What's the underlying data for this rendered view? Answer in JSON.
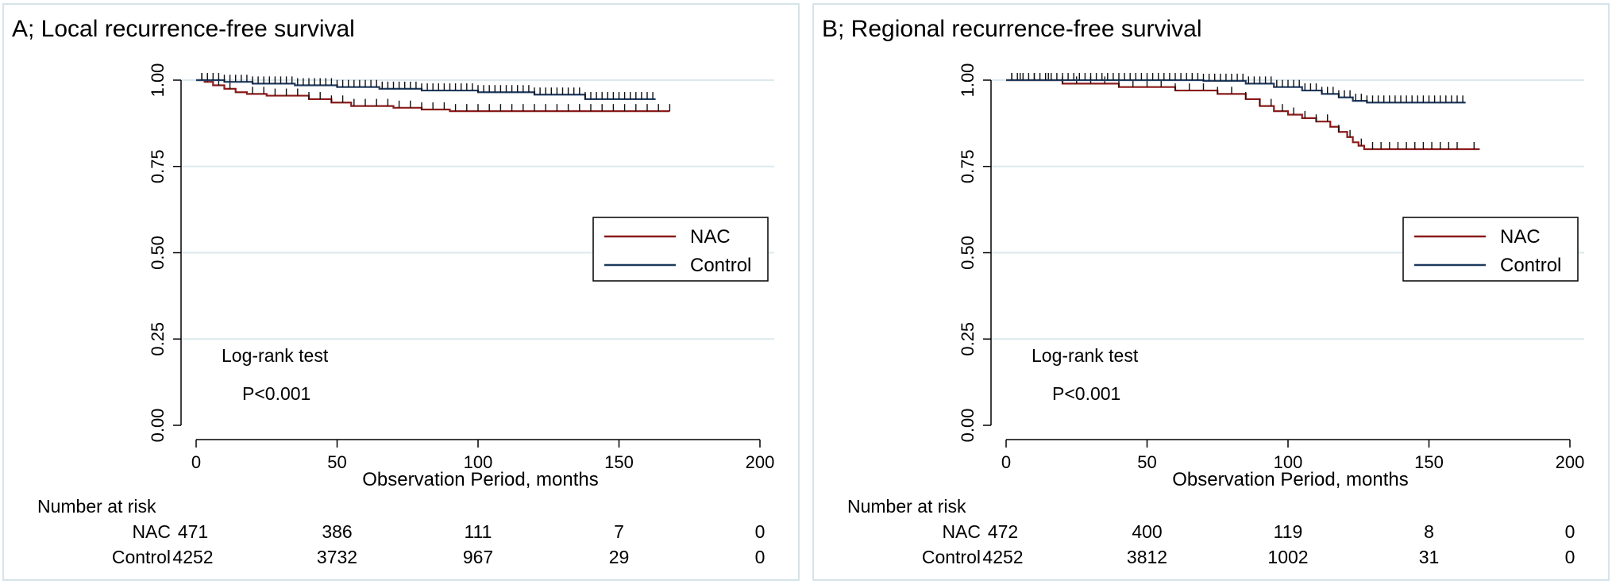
{
  "chart_data": [
    {
      "type": "line",
      "panel": "A",
      "title": "A;  Local recurrence-free survival",
      "xlabel": "Observation Period, months",
      "ylabel": "",
      "xlim": [
        0,
        200
      ],
      "ylim": [
        0,
        1
      ],
      "xticks": [
        0,
        50,
        100,
        150,
        200
      ],
      "xtick_labels": [
        "0",
        "50",
        "100",
        "150",
        "200"
      ],
      "yticks": [
        0,
        0.25,
        0.5,
        0.75,
        1.0
      ],
      "ytick_labels": [
        "0.00",
        "0.25",
        "0.50",
        "0.75",
        "1.00"
      ],
      "grid": true,
      "legend_position": "right",
      "colors": {
        "NAC": "#8b1a1a",
        "Control": "#1f3a5f"
      },
      "series": [
        {
          "name": "NAC",
          "x": [
            0,
            3,
            6,
            10,
            14,
            18,
            25,
            40,
            48,
            55,
            70,
            80,
            90,
            168
          ],
          "y": [
            1.0,
            0.995,
            0.985,
            0.975,
            0.965,
            0.96,
            0.955,
            0.945,
            0.935,
            0.925,
            0.92,
            0.915,
            0.91,
            0.91
          ],
          "censor_x": [
            2,
            4,
            8,
            12,
            20,
            24,
            28,
            32,
            36,
            40,
            44,
            48,
            52,
            56,
            60,
            64,
            68,
            72,
            76,
            80,
            84,
            88,
            92,
            96,
            100,
            104,
            108,
            112,
            116,
            120,
            124,
            128,
            132,
            136,
            140,
            144,
            148,
            152,
            156,
            160,
            164,
            168
          ]
        },
        {
          "name": "Control",
          "x": [
            0,
            10,
            20,
            35,
            50,
            65,
            80,
            100,
            120,
            138,
            163
          ],
          "y": [
            1.0,
            0.995,
            0.99,
            0.985,
            0.98,
            0.975,
            0.97,
            0.965,
            0.958,
            0.945,
            0.945
          ],
          "censor_x": [
            2,
            4,
            6,
            8,
            10,
            12,
            14,
            16,
            18,
            20,
            22,
            24,
            26,
            28,
            30,
            32,
            34,
            36,
            38,
            40,
            42,
            44,
            46,
            48,
            50,
            52,
            54,
            56,
            58,
            60,
            62,
            64,
            66,
            68,
            70,
            72,
            74,
            76,
            78,
            80,
            82,
            84,
            86,
            88,
            90,
            92,
            94,
            96,
            98,
            100,
            102,
            104,
            106,
            108,
            110,
            112,
            114,
            116,
            118,
            120,
            122,
            124,
            126,
            128,
            130,
            132,
            134,
            136,
            138,
            140,
            142,
            144,
            146,
            148,
            150,
            152,
            154,
            156,
            158,
            160,
            162
          ]
        }
      ],
      "annotations": {
        "test": "Log-rank test",
        "p": "P<0.001"
      },
      "risk_table": {
        "header": "Number at risk",
        "rows": [
          {
            "label": "NAC",
            "values": [
              "471",
              "386",
              "111",
              "7",
              "0"
            ]
          },
          {
            "label": "Control",
            "values": [
              "4252",
              "3732",
              "967",
              "29",
              "0"
            ]
          }
        ]
      }
    },
    {
      "type": "line",
      "panel": "B",
      "title": "B;  Regional recurrence-free survival",
      "xlabel": "Observation Period, months",
      "ylabel": "",
      "xlim": [
        0,
        200
      ],
      "ylim": [
        0,
        1
      ],
      "xticks": [
        0,
        50,
        100,
        150,
        200
      ],
      "xtick_labels": [
        "0",
        "50",
        "100",
        "150",
        "200"
      ],
      "yticks": [
        0,
        0.25,
        0.5,
        0.75,
        1.0
      ],
      "ytick_labels": [
        "0.00",
        "0.25",
        "0.50",
        "0.75",
        "1.00"
      ],
      "grid": true,
      "legend_position": "right",
      "colors": {
        "NAC": "#8b1a1a",
        "Control": "#1f3a5f"
      },
      "series": [
        {
          "name": "NAC",
          "x": [
            0,
            20,
            40,
            60,
            75,
            85,
            90,
            95,
            100,
            105,
            110,
            115,
            118,
            121,
            123,
            125,
            127,
            168
          ],
          "y": [
            1.0,
            0.99,
            0.98,
            0.97,
            0.96,
            0.945,
            0.925,
            0.91,
            0.9,
            0.89,
            0.88,
            0.865,
            0.85,
            0.835,
            0.82,
            0.81,
            0.8,
            0.8
          ],
          "censor_x": [
            2,
            5,
            10,
            15,
            20,
            25,
            30,
            35,
            40,
            45,
            50,
            55,
            60,
            65,
            70,
            75,
            80,
            85,
            90,
            94,
            98,
            102,
            106,
            110,
            114,
            118,
            122,
            126,
            130,
            133,
            136,
            139,
            142,
            145,
            148,
            151,
            154,
            157,
            160,
            166
          ]
        },
        {
          "name": "Control",
          "x": [
            0,
            40,
            70,
            85,
            95,
            105,
            112,
            118,
            123,
            128,
            163
          ],
          "y": [
            1.0,
            1.0,
            0.998,
            0.99,
            0.98,
            0.97,
            0.96,
            0.95,
            0.94,
            0.935,
            0.935
          ],
          "censor_x": [
            2,
            4,
            6,
            8,
            10,
            12,
            14,
            16,
            18,
            20,
            22,
            24,
            26,
            28,
            30,
            32,
            34,
            36,
            38,
            40,
            42,
            44,
            46,
            48,
            50,
            52,
            54,
            56,
            58,
            60,
            62,
            64,
            66,
            68,
            70,
            72,
            74,
            76,
            78,
            80,
            82,
            84,
            86,
            88,
            90,
            92,
            94,
            96,
            98,
            100,
            102,
            104,
            106,
            108,
            110,
            112,
            114,
            116,
            118,
            120,
            122,
            124,
            126,
            128,
            130,
            132,
            134,
            136,
            138,
            140,
            142,
            144,
            146,
            148,
            150,
            152,
            154,
            156,
            158,
            160,
            162
          ]
        }
      ],
      "annotations": {
        "test": "Log-rank test",
        "p": "P<0.001"
      },
      "risk_table": {
        "header": "Number at risk",
        "rows": [
          {
            "label": "NAC",
            "values": [
              "472",
              "400",
              "119",
              "8",
              "0"
            ]
          },
          {
            "label": "Control",
            "values": [
              "4252",
              "3812",
              "1002",
              "31",
              "0"
            ]
          }
        ]
      }
    }
  ]
}
